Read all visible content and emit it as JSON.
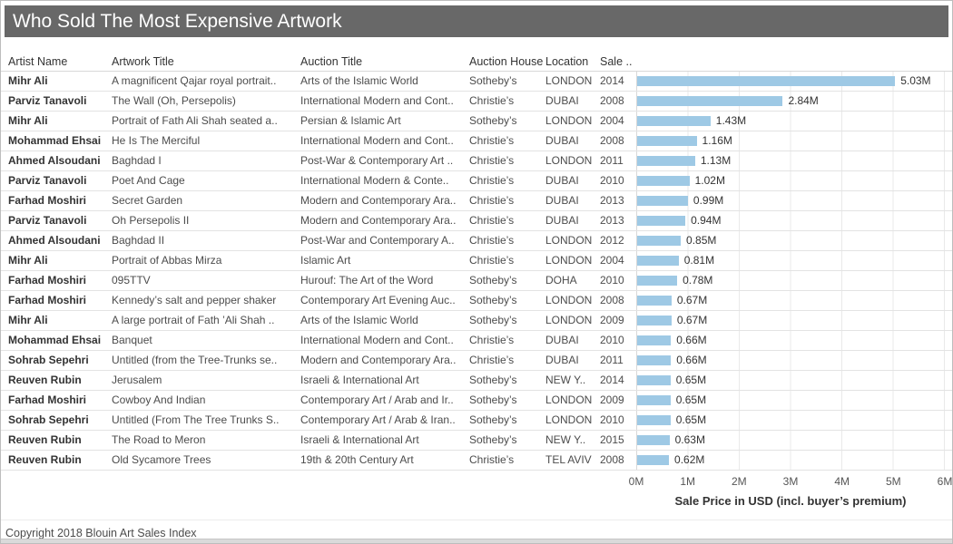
{
  "window": {
    "title": "Who Sold The Most Expensive Artwork",
    "footer": "Copyright 2018 Blouin Art Sales Index",
    "title_bar_color": "#686868",
    "bar_color": "#9ec9e5"
  },
  "table": {
    "columns": [
      "Artist Name",
      "Artwork Title",
      "Auction Title",
      "Auction House",
      "Location",
      "Sale .."
    ],
    "rows": [
      {
        "artist": "Mihr Ali",
        "artwork": "A magnificent Qajar royal portrait..",
        "auction": "Arts of the Islamic World",
        "house": "Sotheby’s",
        "location": "LONDON",
        "year": "2014",
        "value": 5.03,
        "label": "5.03M"
      },
      {
        "artist": "Parviz Tanavoli",
        "artwork": "The Wall (Oh, Persepolis)",
        "auction": "International Modern and Cont..",
        "house": "Christie’s",
        "location": "DUBAI",
        "year": "2008",
        "value": 2.84,
        "label": "2.84M"
      },
      {
        "artist": "Mihr Ali",
        "artwork": "Portrait of Fath Ali Shah seated a..",
        "auction": "Persian & Islamic Art",
        "house": "Sotheby’s",
        "location": "LONDON",
        "year": "2004",
        "value": 1.43,
        "label": "1.43M"
      },
      {
        "artist": "Mohammad Ehsai",
        "artwork": "He Is The Merciful",
        "auction": "International Modern and Cont..",
        "house": "Christie’s",
        "location": "DUBAI",
        "year": "2008",
        "value": 1.16,
        "label": "1.16M"
      },
      {
        "artist": "Ahmed Alsoudani",
        "artwork": "Baghdad I",
        "auction": "Post-War & Contemporary Art ..",
        "house": "Christie’s",
        "location": "LONDON",
        "year": "2011",
        "value": 1.13,
        "label": "1.13M"
      },
      {
        "artist": "Parviz Tanavoli",
        "artwork": "Poet And Cage",
        "auction": "International Modern & Conte..",
        "house": "Christie’s",
        "location": "DUBAI",
        "year": "2010",
        "value": 1.02,
        "label": "1.02M"
      },
      {
        "artist": "Farhad Moshiri",
        "artwork": "Secret Garden",
        "auction": "Modern and Contemporary Ara..",
        "house": "Christie’s",
        "location": "DUBAI",
        "year": "2013",
        "value": 0.99,
        "label": "0.99M"
      },
      {
        "artist": "Parviz Tanavoli",
        "artwork": "Oh Persepolis II",
        "auction": "Modern and Contemporary Ara..",
        "house": "Christie’s",
        "location": "DUBAI",
        "year": "2013",
        "value": 0.94,
        "label": "0.94M"
      },
      {
        "artist": "Ahmed Alsoudani",
        "artwork": "Baghdad II",
        "auction": "Post-War and Contemporary A..",
        "house": "Christie’s",
        "location": "LONDON",
        "year": "2012",
        "value": 0.85,
        "label": "0.85M"
      },
      {
        "artist": "Mihr Ali",
        "artwork": "Portrait of Abbas Mirza",
        "auction": "Islamic Art",
        "house": "Christie’s",
        "location": "LONDON",
        "year": "2004",
        "value": 0.81,
        "label": "0.81M"
      },
      {
        "artist": "Farhad Moshiri",
        "artwork": "095TTV",
        "auction": "Hurouf: The Art of the Word",
        "house": "Sotheby’s",
        "location": "DOHA",
        "year": "2010",
        "value": 0.78,
        "label": "0.78M"
      },
      {
        "artist": "Farhad Moshiri",
        "artwork": "Kennedy’s salt and pepper shaker",
        "auction": "Contemporary Art Evening Auc..",
        "house": "Sotheby’s",
        "location": "LONDON",
        "year": "2008",
        "value": 0.67,
        "label": "0.67M"
      },
      {
        "artist": "Mihr Ali",
        "artwork": "A large portrait of Fath ’Ali Shah ..",
        "auction": "Arts of the Islamic World",
        "house": "Sotheby’s",
        "location": "LONDON",
        "year": "2009",
        "value": 0.67,
        "label": "0.67M"
      },
      {
        "artist": "Mohammad Ehsai",
        "artwork": "Banquet",
        "auction": "International Modern and Cont..",
        "house": "Christie’s",
        "location": "DUBAI",
        "year": "2010",
        "value": 0.66,
        "label": "0.66M"
      },
      {
        "artist": "Sohrab Sepehri",
        "artwork": "Untitled (from the Tree-Trunks se..",
        "auction": "Modern and Contemporary Ara..",
        "house": "Christie’s",
        "location": "DUBAI",
        "year": "2011",
        "value": 0.66,
        "label": "0.66M"
      },
      {
        "artist": "Reuven Rubin",
        "artwork": "Jerusalem",
        "auction": "Israeli & International Art",
        "house": "Sotheby’s",
        "location": "NEW Y..",
        "year": "2014",
        "value": 0.65,
        "label": "0.65M"
      },
      {
        "artist": "Farhad Moshiri",
        "artwork": "Cowboy And Indian",
        "auction": "Contemporary Art / Arab and Ir..",
        "house": "Sotheby’s",
        "location": "LONDON",
        "year": "2009",
        "value": 0.65,
        "label": "0.65M"
      },
      {
        "artist": "Sohrab Sepehri",
        "artwork": "Untitled (From The Tree Trunks S..",
        "auction": "Contemporary Art / Arab & Iran..",
        "house": "Sotheby’s",
        "location": "LONDON",
        "year": "2010",
        "value": 0.65,
        "label": "0.65M"
      },
      {
        "artist": "Reuven Rubin",
        "artwork": "The Road to Meron",
        "auction": "Israeli & International Art",
        "house": "Sotheby’s",
        "location": "NEW Y..",
        "year": "2015",
        "value": 0.63,
        "label": "0.63M"
      },
      {
        "artist": "Reuven Rubin",
        "artwork": "Old Sycamore Trees",
        "auction": "19th & 20th Century Art",
        "house": "Christie’s",
        "location": "TEL AVIV",
        "year": "2008",
        "value": 0.62,
        "label": "0.62M"
      }
    ]
  },
  "chart_data": {
    "type": "bar",
    "orientation": "horizontal",
    "title": "Who Sold The Most Expensive Artwork",
    "xlabel": "Sale Price in USD (incl. buyer’s premium)",
    "ylabel": "",
    "xlim": [
      0,
      6
    ],
    "unit": "millions USD",
    "ticks": [
      "0M",
      "1M",
      "2M",
      "3M",
      "4M",
      "5M",
      "6M"
    ],
    "grid": "vertical gridlines every 1M",
    "legend": "none",
    "categories": [
      "A magnificent Qajar royal portrait..",
      "The Wall (Oh, Persepolis)",
      "Portrait of Fath Ali Shah seated a..",
      "He Is The Merciful",
      "Baghdad I",
      "Poet And Cage",
      "Secret Garden",
      "Oh Persepolis II",
      "Baghdad II",
      "Portrait of Abbas Mirza",
      "095TTV",
      "Kennedy’s salt and pepper shaker",
      "A large portrait of Fath ’Ali Shah ..",
      "Banquet",
      "Untitled (from the Tree-Trunks se..",
      "Jerusalem",
      "Cowboy And Indian",
      "Untitled (From The Tree Trunks S..",
      "The Road to Meron",
      "Old Sycamore Trees"
    ],
    "values": [
      5.03,
      2.84,
      1.43,
      1.16,
      1.13,
      1.02,
      0.99,
      0.94,
      0.85,
      0.81,
      0.78,
      0.67,
      0.67,
      0.66,
      0.66,
      0.65,
      0.65,
      0.65,
      0.63,
      0.62
    ],
    "value_labels": [
      "5.03M",
      "2.84M",
      "1.43M",
      "1.16M",
      "1.13M",
      "1.02M",
      "0.99M",
      "0.94M",
      "0.85M",
      "0.81M",
      "0.78M",
      "0.67M",
      "0.67M",
      "0.66M",
      "0.66M",
      "0.65M",
      "0.65M",
      "0.65M",
      "0.63M",
      "0.62M"
    ]
  }
}
